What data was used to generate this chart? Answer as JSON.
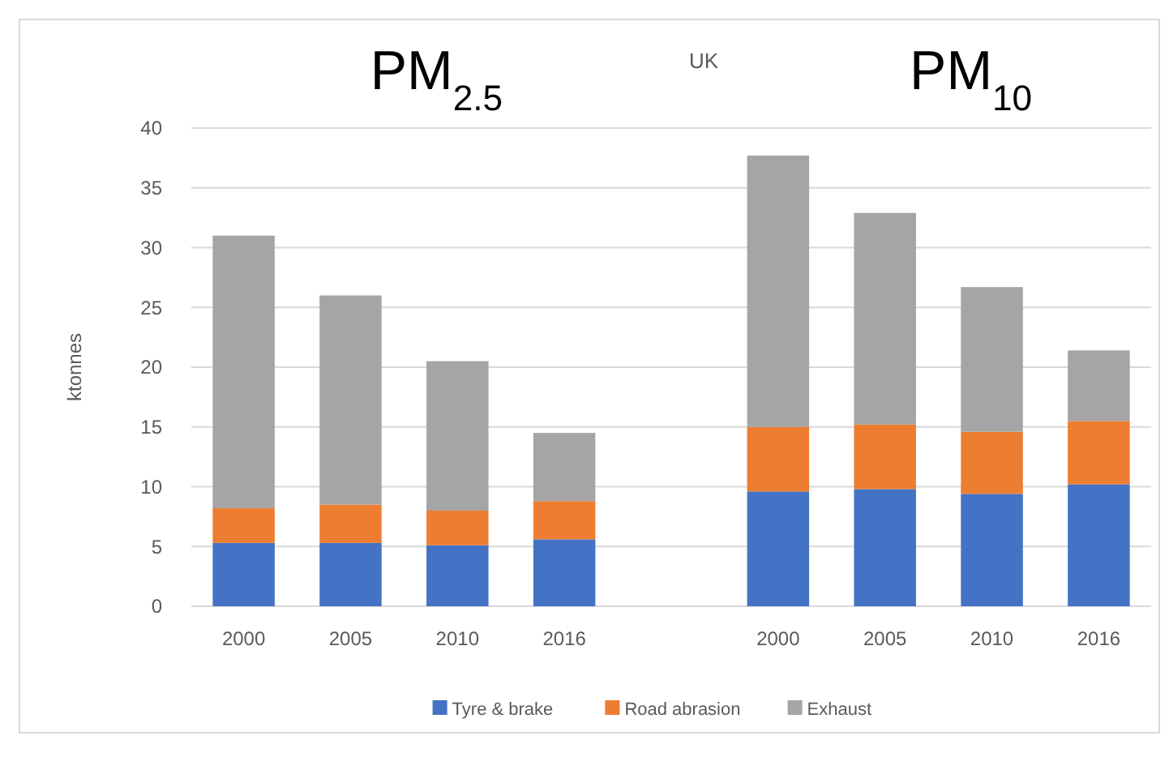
{
  "chart_data": {
    "type": "bar",
    "title": "UK",
    "ylabel": "ktonnes",
    "annotations": [
      "PM$_{2.5}$",
      "PM$_{10}$"
    ],
    "categories": [
      "2000",
      "2005",
      "2010",
      "2016",
      null,
      "2000",
      "2005",
      "2010",
      "2016"
    ],
    "stacked": true,
    "ylim": [
      0,
      40
    ],
    "yticks": [
      0,
      5,
      10,
      15,
      20,
      25,
      30,
      35,
      40
    ],
    "grid": "y",
    "legend": "bottom",
    "series": [
      {
        "name": "Tyre & brake",
        "color": "#4472c4",
        "values": [
          5.3,
          5.3,
          5.1,
          5.6,
          null,
          9.6,
          9.8,
          9.4,
          10.2
        ]
      },
      {
        "name": "Road abrasion",
        "color": "#ed7d31",
        "values": [
          2.9,
          3.2,
          2.9,
          3.2,
          null,
          5.4,
          5.4,
          5.2,
          5.3
        ]
      },
      {
        "name": "Exhaust",
        "color": "#a5a5a5",
        "values": [
          22.8,
          17.5,
          12.5,
          5.7,
          null,
          22.7,
          17.7,
          12.1,
          5.9
        ]
      }
    ]
  }
}
